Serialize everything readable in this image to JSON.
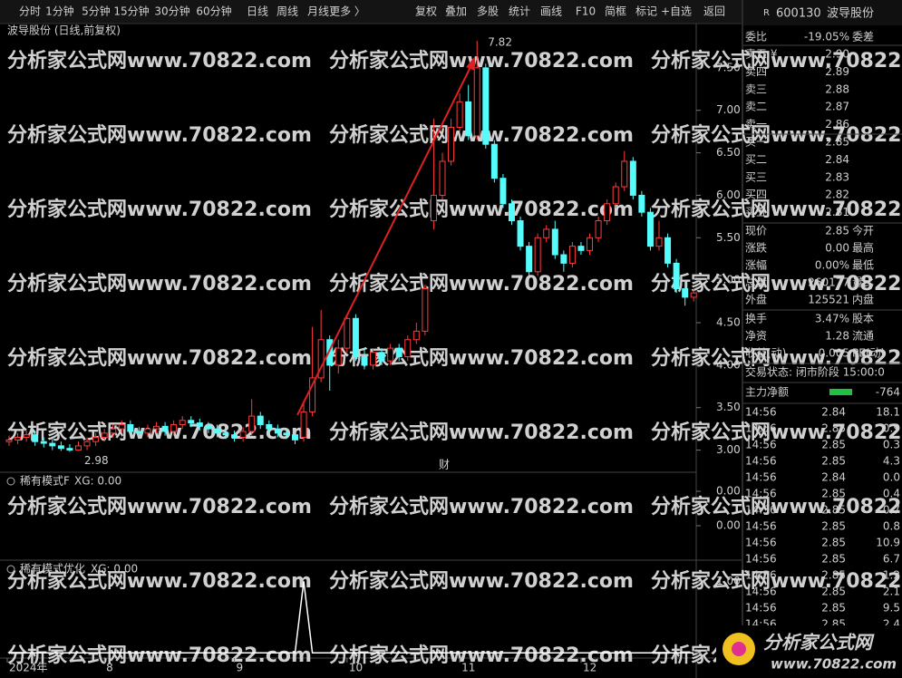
{
  "toolbar": {
    "periods": [
      "分时",
      "1分钟",
      "5分钟",
      "15分钟",
      "30分钟",
      "60分钟",
      "日线",
      "周线",
      "月线",
      "更多 〉"
    ],
    "actions": [
      "复权",
      "叠加",
      "多股",
      "统计",
      "画线",
      "F10",
      "简框",
      "标记",
      "+自选",
      "返回"
    ]
  },
  "chart_data": {
    "type": "candlestick",
    "title": "波导股份 (日线,前复权)",
    "up_color": "#ff3b3b",
    "down_color": "#54fcfc",
    "open": [
      3.1,
      3.12,
      3.15,
      3.18,
      3.1,
      3.08,
      3.05,
      3.02,
      3.0,
      3.05,
      3.1,
      3.15,
      3.2,
      3.25,
      3.3,
      3.22,
      3.2,
      3.25,
      3.28,
      3.22,
      3.3,
      3.35,
      3.32,
      3.28,
      3.25,
      3.2,
      3.18,
      3.15,
      3.22,
      3.4,
      3.3,
      3.25,
      3.2,
      3.18,
      3.15,
      3.45,
      3.85,
      4.3,
      4.0,
      4.2,
      4.55,
      4.1,
      4.0,
      4.15,
      4.05,
      4.2,
      4.1,
      4.3,
      4.4,
      5.7,
      6.0,
      6.4,
      6.8,
      7.1,
      6.7,
      7.5,
      6.6,
      6.2,
      5.9,
      5.7,
      5.4,
      5.1,
      5.5,
      5.6,
      5.3,
      5.2,
      5.4,
      5.35,
      5.5,
      5.7,
      5.9,
      6.1,
      6.4,
      6.0,
      5.8,
      5.4,
      5.5,
      5.2,
      4.9,
      4.8
    ],
    "high": [
      3.17,
      3.2,
      3.23,
      3.23,
      3.15,
      3.13,
      3.1,
      3.07,
      3.1,
      3.15,
      3.2,
      3.25,
      3.3,
      3.35,
      3.35,
      3.27,
      3.3,
      3.33,
      3.33,
      3.35,
      3.4,
      3.4,
      3.37,
      3.33,
      3.3,
      3.25,
      3.23,
      3.27,
      3.6,
      3.45,
      3.35,
      3.3,
      3.25,
      3.23,
      3.55,
      4.45,
      4.65,
      4.35,
      4.3,
      4.6,
      4.6,
      4.2,
      4.2,
      4.2,
      4.25,
      4.25,
      4.35,
      4.5,
      4.95,
      6.9,
      6.5,
      6.9,
      7.2,
      7.3,
      7.82,
      7.55,
      6.65,
      6.25,
      5.95,
      5.75,
      5.45,
      5.55,
      5.65,
      5.7,
      5.35,
      5.45,
      5.45,
      5.55,
      5.75,
      5.95,
      6.15,
      6.52,
      6.45,
      6.05,
      5.85,
      5.7,
      5.55,
      5.25,
      5.0,
      4.9
    ],
    "low": [
      3.05,
      3.07,
      3.1,
      3.05,
      3.03,
      3.0,
      2.99,
      2.98,
      2.99,
      3.0,
      3.05,
      3.1,
      3.15,
      3.2,
      3.17,
      3.15,
      3.15,
      3.2,
      3.17,
      3.17,
      3.25,
      3.27,
      3.23,
      3.2,
      3.15,
      3.13,
      3.1,
      3.1,
      3.17,
      3.25,
      3.2,
      3.15,
      3.13,
      3.07,
      3.1,
      3.4,
      3.8,
      3.7,
      3.9,
      4.15,
      4.05,
      3.95,
      3.95,
      4.0,
      4.0,
      4.05,
      4.05,
      4.25,
      4.35,
      5.6,
      5.95,
      6.35,
      6.75,
      6.65,
      6.65,
      6.55,
      6.15,
      5.85,
      5.65,
      5.35,
      5.05,
      5.05,
      5.45,
      5.25,
      5.1,
      5.15,
      5.3,
      5.3,
      5.45,
      5.65,
      5.85,
      6.05,
      5.95,
      5.75,
      5.35,
      5.35,
      5.15,
      4.85,
      4.7,
      4.75
    ],
    "close": [
      3.12,
      3.15,
      3.18,
      3.1,
      3.08,
      3.05,
      3.02,
      3.0,
      3.05,
      3.1,
      3.15,
      3.2,
      3.25,
      3.3,
      3.22,
      3.2,
      3.25,
      3.28,
      3.22,
      3.3,
      3.35,
      3.32,
      3.28,
      3.25,
      3.2,
      3.18,
      3.15,
      3.22,
      3.4,
      3.3,
      3.25,
      3.2,
      3.18,
      3.12,
      3.45,
      3.85,
      4.3,
      4.0,
      4.2,
      4.55,
      4.1,
      4.0,
      4.15,
      4.05,
      4.2,
      4.1,
      4.3,
      4.4,
      4.9,
      6.0,
      6.4,
      6.8,
      7.1,
      6.7,
      7.5,
      6.6,
      6.2,
      5.9,
      5.7,
      5.4,
      5.1,
      5.5,
      5.6,
      5.3,
      5.2,
      5.4,
      5.35,
      5.5,
      5.7,
      5.9,
      6.1,
      6.4,
      6.0,
      5.8,
      5.4,
      5.5,
      5.2,
      4.9,
      4.8,
      4.85
    ],
    "ylim": [
      2.75,
      8.0
    ],
    "yticks": [
      {
        "value": 3,
        "label": "3.00"
      },
      {
        "value": 3.5,
        "label": "3.50"
      },
      {
        "value": 4,
        "label": "4.00"
      },
      {
        "value": 4.5,
        "label": "4.50"
      },
      {
        "value": 5,
        "label": "5.00"
      },
      {
        "value": 5.5,
        "label": "5.50"
      },
      {
        "value": 6,
        "label": "6.00"
      },
      {
        "value": 6.5,
        "label": "6.50"
      },
      {
        "value": 7,
        "label": "7.00"
      },
      {
        "value": 7.5,
        "label": "7.50"
      }
    ],
    "xticks": [
      {
        "value": 0,
        "label": "2024年"
      },
      {
        "value": 11,
        "label": "8"
      },
      {
        "value": 26,
        "label": "9"
      },
      {
        "value": 39,
        "label": "10"
      },
      {
        "value": 52,
        "label": "11"
      },
      {
        "value": 66,
        "label": "12"
      }
    ],
    "annotations": {
      "high": "7.82",
      "low": "2.98",
      "event": "财"
    },
    "watermark": "分析家公式网www.70822.com",
    "indicators": [
      {
        "title": "稀有模式F",
        "reading": "XG: 0.00",
        "yticks": [
          {
            "value": 0,
            "label": "0.00"
          },
          {
            "value": 0,
            "label": "0.00"
          }
        ]
      },
      {
        "title": "稀有模式优化",
        "reading": "XG: 0.00",
        "color": "#ffffff",
        "ylim": [
          -0.06,
          1.27
        ],
        "yticks": [
          {
            "value": 1,
            "label": "1.00"
          },
          {
            "value": 0,
            "label": "0.00"
          }
        ],
        "values": [
          0,
          0,
          0,
          0,
          0,
          0,
          0,
          0,
          0,
          0,
          0,
          0,
          0,
          0,
          0,
          0,
          0,
          0,
          0,
          0,
          0,
          0,
          0,
          0,
          0,
          0,
          0,
          0,
          0,
          0,
          0,
          0,
          0,
          0,
          1,
          0,
          0,
          0,
          0,
          0,
          0,
          0,
          0,
          0,
          0,
          0,
          0,
          0,
          0,
          0,
          0,
          0,
          0,
          0,
          0,
          0,
          0,
          0,
          0,
          0,
          0,
          0,
          0,
          0,
          0,
          0,
          0,
          0,
          0,
          0,
          0,
          0,
          0,
          0,
          0,
          0,
          0,
          0,
          0,
          0
        ]
      }
    ]
  },
  "quote": {
    "flag": "R",
    "code": "600130",
    "name": "波导股份",
    "ratio": [
      "委比",
      "-19.05%",
      "委差"
    ],
    "asks": [
      [
        "卖五 ¥",
        "2.90"
      ],
      [
        "卖四",
        "2.89"
      ],
      [
        "卖三",
        "2.88"
      ],
      [
        "卖二",
        "2.87"
      ],
      [
        "卖一",
        "2.86"
      ]
    ],
    "bids": [
      [
        "买一",
        "2.85"
      ],
      [
        "买二",
        "2.84"
      ],
      [
        "买三",
        "2.83"
      ],
      [
        "买四",
        "2.82"
      ],
      [
        "买五",
        "2.81"
      ]
    ],
    "stats": [
      [
        "现价",
        "2.85",
        "今开"
      ],
      [
        "涨跌",
        "0.00",
        "最高"
      ],
      [
        "涨幅",
        "0.00%",
        "最低"
      ],
      [
        "总量",
        "260177",
        "量比"
      ],
      [
        "外盘",
        "125521",
        "内盘"
      ]
    ],
    "stats2": [
      [
        "换手",
        "3.47%",
        "股本"
      ],
      [
        "净资",
        "1.28",
        "流通"
      ],
      [
        "收益(动)",
        "0.005",
        "PE(动)"
      ]
    ],
    "status": "交易状态: 闭市阶段 15:00:0",
    "main_flow": [
      "主力净额",
      "-764"
    ],
    "trades": [
      [
        "14:56",
        "2.84",
        "18.1"
      ],
      [
        "14:56",
        "2.85",
        "0.9"
      ],
      [
        "14:56",
        "2.85",
        "0.3"
      ],
      [
        "14:56",
        "2.85",
        "4.3"
      ],
      [
        "14:56",
        "2.84",
        "0.0"
      ],
      [
        "14:56",
        "2.85",
        "0.4"
      ],
      [
        "14:56",
        "2.85",
        "0.7"
      ],
      [
        "14:56",
        "2.85",
        "0.8"
      ],
      [
        "14:56",
        "2.85",
        "10.9"
      ],
      [
        "14:56",
        "2.85",
        "6.7"
      ],
      [
        "14:56",
        "2.85",
        "1.2"
      ],
      [
        "14:56",
        "2.85",
        "2.1"
      ],
      [
        "14:56",
        "2.85",
        "9.5"
      ],
      [
        "14:56",
        "2.85",
        "2.4"
      ]
    ]
  },
  "logo": [
    "分析家公式网",
    "www.70822.com"
  ]
}
